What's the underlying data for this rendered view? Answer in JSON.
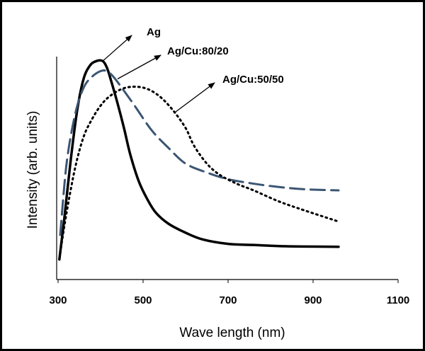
{
  "chart_data": {
    "type": "line",
    "title": "",
    "xlabel": "Wave length (nm)",
    "ylabel": "Intensity (arb. units)",
    "xlim": [
      300,
      1100
    ],
    "ylim": [
      0,
      1
    ],
    "xticks": [
      300,
      500,
      700,
      900,
      1100
    ],
    "grid": false,
    "legend": "none",
    "series": [
      {
        "name": "Ag",
        "style": "solid",
        "color": "#000000",
        "x": [
          303,
          315,
          330,
          345,
          360,
          375,
          390,
          405,
          415,
          425,
          440,
          455,
          470,
          490,
          510,
          530,
          560,
          600,
          640,
          700,
          760,
          820,
          880,
          960
        ],
        "y": [
          0.09,
          0.28,
          0.54,
          0.76,
          0.9,
          0.96,
          0.98,
          0.98,
          0.95,
          0.89,
          0.79,
          0.68,
          0.56,
          0.44,
          0.36,
          0.3,
          0.25,
          0.21,
          0.18,
          0.16,
          0.155,
          0.15,
          0.148,
          0.147
        ]
      },
      {
        "name": "Ag/Cu:80/20",
        "style": "dashed",
        "color": "#3b5573",
        "x": [
          305,
          320,
          340,
          360,
          380,
          400,
          415,
          430,
          450,
          480,
          520,
          560,
          600,
          650,
          700,
          760,
          820,
          880,
          960
        ],
        "y": [
          0.2,
          0.52,
          0.74,
          0.86,
          0.91,
          0.935,
          0.935,
          0.91,
          0.86,
          0.78,
          0.67,
          0.59,
          0.52,
          0.48,
          0.45,
          0.43,
          0.415,
          0.405,
          0.4
        ]
      },
      {
        "name": "Ag/Cu:50/50",
        "style": "dotted",
        "color": "#000000",
        "x": [
          305,
          320,
          340,
          360,
          380,
          400,
          420,
          450,
          480,
          510,
          540,
          570,
          600,
          620,
          650,
          680,
          720,
          760,
          820,
          880,
          960
        ],
        "y": [
          0.12,
          0.3,
          0.5,
          0.64,
          0.72,
          0.78,
          0.82,
          0.855,
          0.865,
          0.855,
          0.82,
          0.76,
          0.68,
          0.6,
          0.52,
          0.47,
          0.43,
          0.4,
          0.35,
          0.31,
          0.26
        ]
      }
    ],
    "annotations": [
      {
        "text": "Ag",
        "series": "Ag",
        "at_x": 405,
        "at_y": 0.98
      },
      {
        "text": "Ag/Cu:80/20",
        "series": "Ag/Cu:80/20",
        "at_x": 440,
        "at_y": 0.9
      },
      {
        "text": "Ag/Cu:50/50",
        "series": "Ag/Cu:50/50",
        "at_x": 575,
        "at_y": 0.75
      }
    ]
  }
}
